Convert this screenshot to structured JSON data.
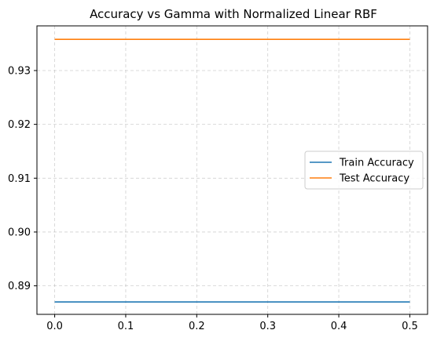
{
  "chart_data": {
    "type": "line",
    "title": "Accuracy vs Gamma with Normalized Linear RBF",
    "xlabel": "",
    "ylabel": "",
    "xlim": [
      -0.025,
      0.525
    ],
    "ylim": [
      0.8847,
      0.9383
    ],
    "xticks": [
      0.0,
      0.1,
      0.2,
      0.3,
      0.4,
      0.5
    ],
    "xtick_labels": [
      "0.0",
      "0.1",
      "0.2",
      "0.3",
      "0.4",
      "0.5"
    ],
    "yticks": [
      0.89,
      0.9,
      0.91,
      0.92,
      0.93
    ],
    "ytick_labels": [
      "0.89",
      "0.90",
      "0.91",
      "0.92",
      "0.93"
    ],
    "grid": true,
    "legend_position": "center-right",
    "series": [
      {
        "name": "Train Accuracy",
        "color": "#1f77b4",
        "x": [
          0.0,
          0.5
        ],
        "y": [
          0.887,
          0.887
        ]
      },
      {
        "name": "Test Accuracy",
        "color": "#ff7f0e",
        "x": [
          0.0,
          0.5
        ],
        "y": [
          0.9358,
          0.9358
        ]
      }
    ]
  }
}
